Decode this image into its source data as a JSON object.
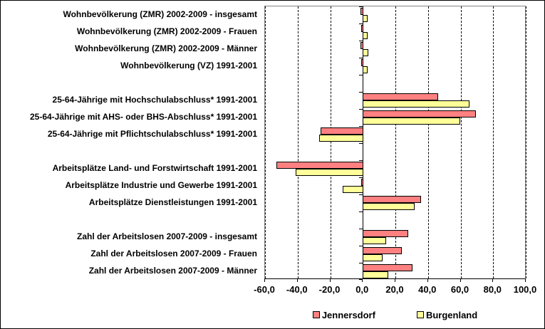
{
  "chart_data": {
    "type": "bar",
    "orientation": "horizontal",
    "title": "",
    "categories": [
      "Wohnbevölkerung (ZMR) 2002-2009 - insgesamt",
      "Wohnbevölkerung (ZMR) 2002-2009 - Frauen",
      "Wohnbevölkerung (ZMR) 2002-2009 - Männer",
      "Wohnbevölkerung (VZ) 1991-2001",
      "25-64-Jährige mit Hochschulabschluss* 1991-2001",
      "25-64-Jährige mit AHS- oder BHS-Abschluss* 1991-2001",
      "25-64-Jährige mit Pflichtschulabschluss* 1991-2001",
      "Arbeitsplätze Land- und Forstwirtschaft 1991-2001",
      "Arbeitsplätze Industrie und Gewerbe 1991-2001",
      "Arbeitsplätze Dienstleistungen 1991-2001",
      "Zahl der Arbeitslosen 2007-2009 - insgesamt",
      "Zahl der Arbeitslosen 2007-2009 - Frauen",
      "Zahl der Arbeitslosen 2007-2009 - Männer"
    ],
    "series": [
      {
        "name": "Jennersdorf",
        "color": "#FF8080",
        "values": [
          -1.5,
          -1.0,
          -1.5,
          -1.0,
          46.0,
          69.0,
          -25.8,
          -52.7,
          -0.9,
          35.5,
          27.7,
          23.6,
          30.2
        ]
      },
      {
        "name": "Burgenland",
        "color": "#FFFF99",
        "values": [
          2.6,
          2.6,
          2.9,
          2.6,
          65.0,
          59.5,
          -26.8,
          -41.0,
          -12.3,
          31.5,
          14.0,
          11.6,
          15.5
        ]
      }
    ],
    "groups": [
      [
        0,
        1,
        2,
        3
      ],
      [
        4,
        5,
        6
      ],
      [
        7,
        8,
        9
      ],
      [
        10,
        11,
        12
      ]
    ],
    "xlim": [
      -60,
      100
    ],
    "x_ticks": [
      -60,
      -40,
      -20,
      0,
      20,
      40,
      60,
      80,
      100
    ],
    "x_tick_labels": [
      "-60,0",
      "-40,0",
      "-20,0",
      "0,0",
      "20,0",
      "40,0",
      "60,0",
      "80,0",
      "100,0"
    ],
    "grid": "vertical-dashed",
    "legend_position": "bottom",
    "colors": {
      "bar_border": "#000000",
      "plot_border": "#848484",
      "gridline": "#000000",
      "background": "#FFFFFF"
    }
  }
}
